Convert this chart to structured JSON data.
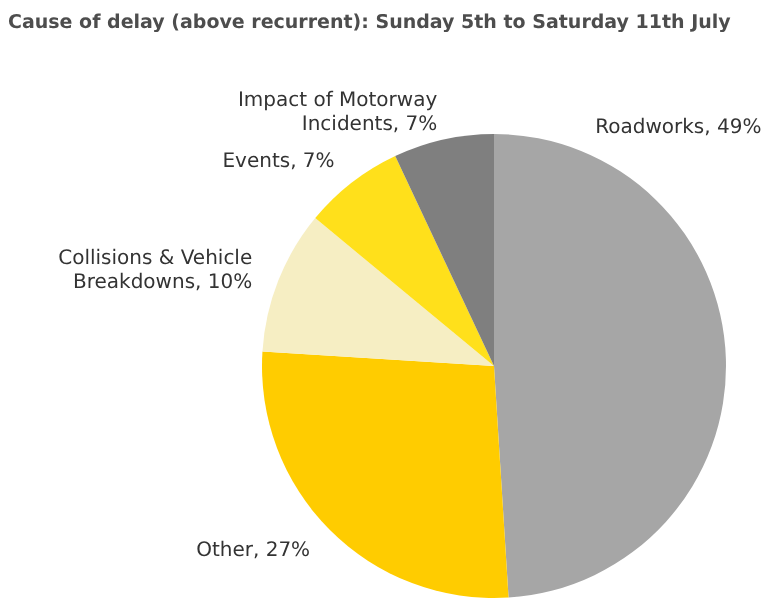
{
  "chart_data": {
    "type": "pie",
    "title": "Cause of delay (above recurrent): Sunday 5th to Saturday 11th July",
    "categories": [
      "Roadworks",
      "Other",
      "Collisions & Vehicle Breakdowns",
      "Events",
      "Impact of Motorway Incidents"
    ],
    "values": [
      49,
      27,
      10,
      7,
      7
    ],
    "value_labels": [
      "49%",
      "27%",
      "10%",
      "7%",
      "7%"
    ],
    "colors": [
      "#a6a6a6",
      "#ffcc00",
      "#f6eec3",
      "#ffe01b",
      "#7f7f7f"
    ]
  }
}
